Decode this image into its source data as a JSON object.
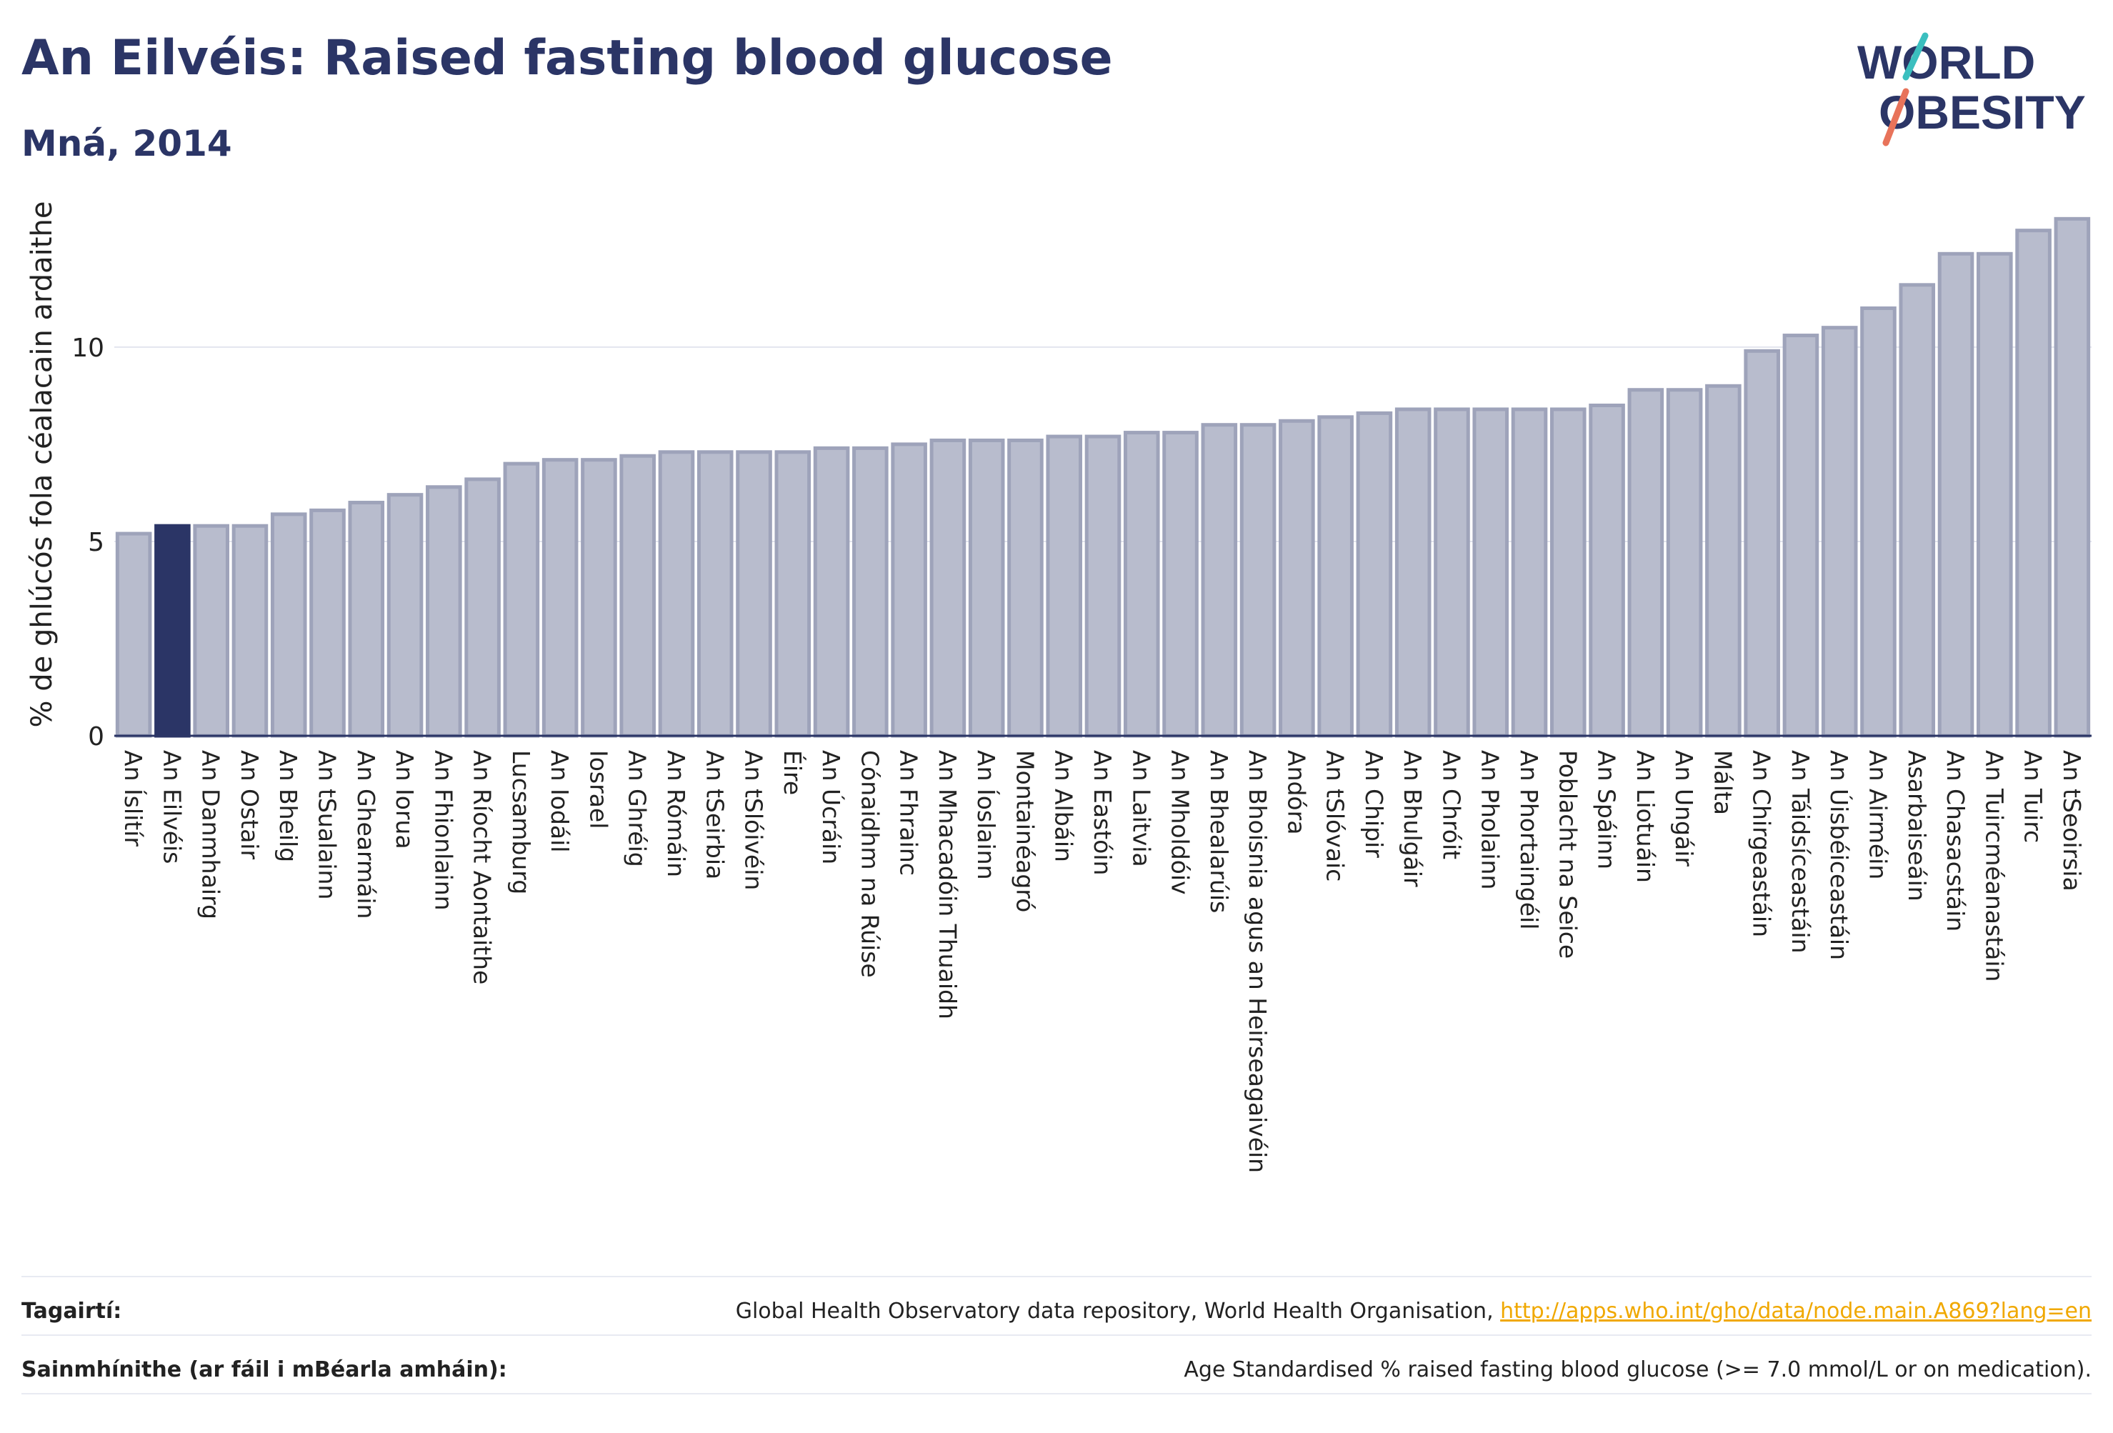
{
  "header": {
    "title": "An Eilvéis: Raised fasting blood glucose",
    "subtitle": "Mná, 2014"
  },
  "logo": {
    "line1": "WORLD",
    "line2": "OBESITY"
  },
  "colors": {
    "bar": "#b8bccd",
    "bar_stroke": "#9ea3ba",
    "highlight": "#2b3566",
    "axis": "#2b3566",
    "grid": "#e3e5ee"
  },
  "chart_data": {
    "type": "bar",
    "ylabel": "% de ghlúcós fola céalacain ardaithe",
    "ylim": [
      0,
      13.6
    ],
    "yticks": [
      0,
      5,
      10
    ],
    "grid": true,
    "highlight": "An Eilvéis",
    "categories": [
      "An Íslitír",
      "An Eilvéis",
      "An Danmhairg",
      "An Ostair",
      "An Bheilg",
      "An tSualainn",
      "An Ghearmáin",
      "An Iorua",
      "An Fhionlainn",
      "An Ríocht Aontaithe",
      "Lucsamburg",
      "An Iodáil",
      "Iosrael",
      "An Ghréig",
      "An Rómáin",
      "An tSeirbia",
      "An tSlóivéin",
      "Éire",
      "An Úcráin",
      "Cónaidhm na Rúise",
      "An Fhrainc",
      "An Mhacadóin Thuaidh",
      "An Íoslainn",
      "Montainéagró",
      "An Albáin",
      "An Eastóin",
      "An Laitvia",
      "An Mholdóiv",
      "An Bhealarúis",
      "An Bhoisnia agus an Heirseagaivéin",
      "Andóra",
      "An tSlóvaic",
      "An Chipir",
      "An Bhulgáir",
      "An Chróit",
      "An Pholainn",
      "An Phortaingéil",
      "Poblacht na Seice",
      "An Spáinn",
      "An Liotuáin",
      "An Ungáir",
      "Málta",
      "An Chirgeastáin",
      "An Táidsíceastáin",
      "An Úisbéiceastáin",
      "An Airméin",
      "Asarbaiseáin",
      "An Chasacstáin",
      "An Tuircméanastáin",
      "An Tuirc",
      "An tSeoirsia"
    ],
    "values": [
      5.2,
      5.4,
      5.4,
      5.4,
      5.7,
      5.8,
      6.0,
      6.2,
      6.4,
      6.6,
      7.0,
      7.1,
      7.1,
      7.2,
      7.3,
      7.3,
      7.3,
      7.3,
      7.4,
      7.4,
      7.5,
      7.6,
      7.6,
      7.6,
      7.7,
      7.7,
      7.8,
      7.8,
      8.0,
      8.0,
      8.1,
      8.2,
      8.3,
      8.4,
      8.4,
      8.4,
      8.4,
      8.4,
      8.5,
      8.9,
      8.9,
      9.0,
      9.9,
      10.3,
      10.5,
      11.0,
      11.6,
      12.4,
      12.4,
      13.0,
      13.3
    ]
  },
  "footer": {
    "ref_label": "Tagairtí:",
    "ref_text": "Global Health Observatory data repository, World Health Organisation, ",
    "ref_link": "http://apps.who.int/gho/data/node.main.A869?lang=en",
    "def_label": "Sainmhínithe (ar fáil i mBéarla amháin):",
    "def_text": "Age Standardised % raised fasting blood glucose (>= 7.0 mmol/L or on medication)."
  }
}
